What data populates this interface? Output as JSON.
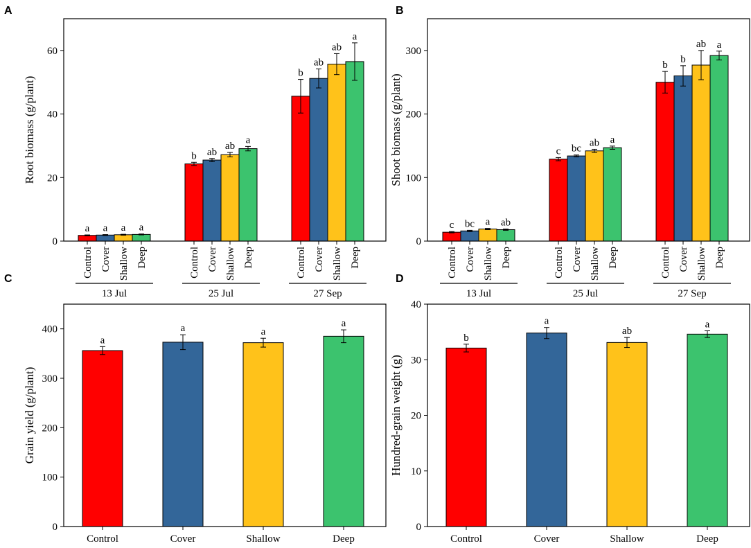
{
  "colors": {
    "Control": "#ff0000",
    "Cover": "#336699",
    "Shallow": "#ffc21a",
    "Deep": "#3cc36e",
    "axis": "#000000"
  },
  "chart_data": [
    {
      "panel": "A",
      "type": "bar",
      "ylabel": "Root biomass (g/plant)",
      "xlabel": "",
      "ylim": [
        0,
        70
      ],
      "yticks": [
        0,
        20,
        40,
        60
      ],
      "treatments": [
        "Control",
        "Cover",
        "Shallow",
        "Deep"
      ],
      "groups": [
        {
          "label": "13 Jul",
          "values": [
            1.8,
            1.9,
            2.0,
            2.1
          ],
          "errors": [
            0.15,
            0.15,
            0.15,
            0.15
          ],
          "letters": [
            "a",
            "a",
            "a",
            "a"
          ]
        },
        {
          "label": "25 Jul",
          "values": [
            24.3,
            25.5,
            27.2,
            29.1
          ],
          "errors": [
            0.5,
            0.5,
            0.7,
            0.7
          ],
          "letters": [
            "b",
            "ab",
            "ab",
            "a"
          ]
        },
        {
          "label": "27 Sep",
          "values": [
            45.6,
            51.2,
            55.7,
            56.5
          ],
          "errors": [
            5.3,
            3.0,
            3.3,
            5.9
          ],
          "letters": [
            "b",
            "ab",
            "ab",
            "a"
          ]
        }
      ]
    },
    {
      "panel": "B",
      "type": "bar",
      "ylabel": "Shoot biomass (g/plant)",
      "xlabel": "",
      "ylim": [
        0,
        350
      ],
      "yticks": [
        0,
        100,
        200,
        300
      ],
      "treatments": [
        "Control",
        "Cover",
        "Shallow",
        "Deep"
      ],
      "groups": [
        {
          "label": "13 Jul",
          "values": [
            14,
            16,
            19,
            18
          ],
          "errors": [
            1,
            1,
            1,
            1
          ],
          "letters": [
            "c",
            "bc",
            "a",
            "ab"
          ]
        },
        {
          "label": "25 Jul",
          "values": [
            129,
            134,
            142,
            147
          ],
          "errors": [
            2.5,
            1.5,
            2.5,
            2.5
          ],
          "letters": [
            "c",
            "bc",
            "ab",
            "a"
          ]
        },
        {
          "label": "27 Sep",
          "values": [
            250,
            260,
            277,
            292
          ],
          "errors": [
            17,
            16,
            23,
            7
          ],
          "letters": [
            "b",
            "b",
            "ab",
            "a"
          ]
        }
      ]
    },
    {
      "panel": "C",
      "type": "bar",
      "ylabel": "Grain yield (g/plant)",
      "xlabel": "",
      "ylim": [
        0,
        450
      ],
      "yticks": [
        0,
        100,
        200,
        300,
        400
      ],
      "categories": [
        "Control",
        "Cover",
        "Shallow",
        "Deep"
      ],
      "values": [
        356,
        373,
        372,
        385
      ],
      "errors": [
        8,
        15,
        9,
        13
      ],
      "letters": [
        "a",
        "a",
        "a",
        "a"
      ]
    },
    {
      "panel": "D",
      "type": "bar",
      "ylabel": "Hundred-grain weight (g)",
      "xlabel": "",
      "ylim": [
        0,
        40
      ],
      "yticks": [
        0,
        10,
        20,
        30,
        40
      ],
      "categories": [
        "Control",
        "Cover",
        "Shallow",
        "Deep"
      ],
      "values": [
        32.1,
        34.8,
        33.1,
        34.6
      ],
      "errors": [
        0.7,
        1.0,
        0.9,
        0.6
      ],
      "letters": [
        "b",
        "a",
        "ab",
        "a"
      ]
    }
  ]
}
